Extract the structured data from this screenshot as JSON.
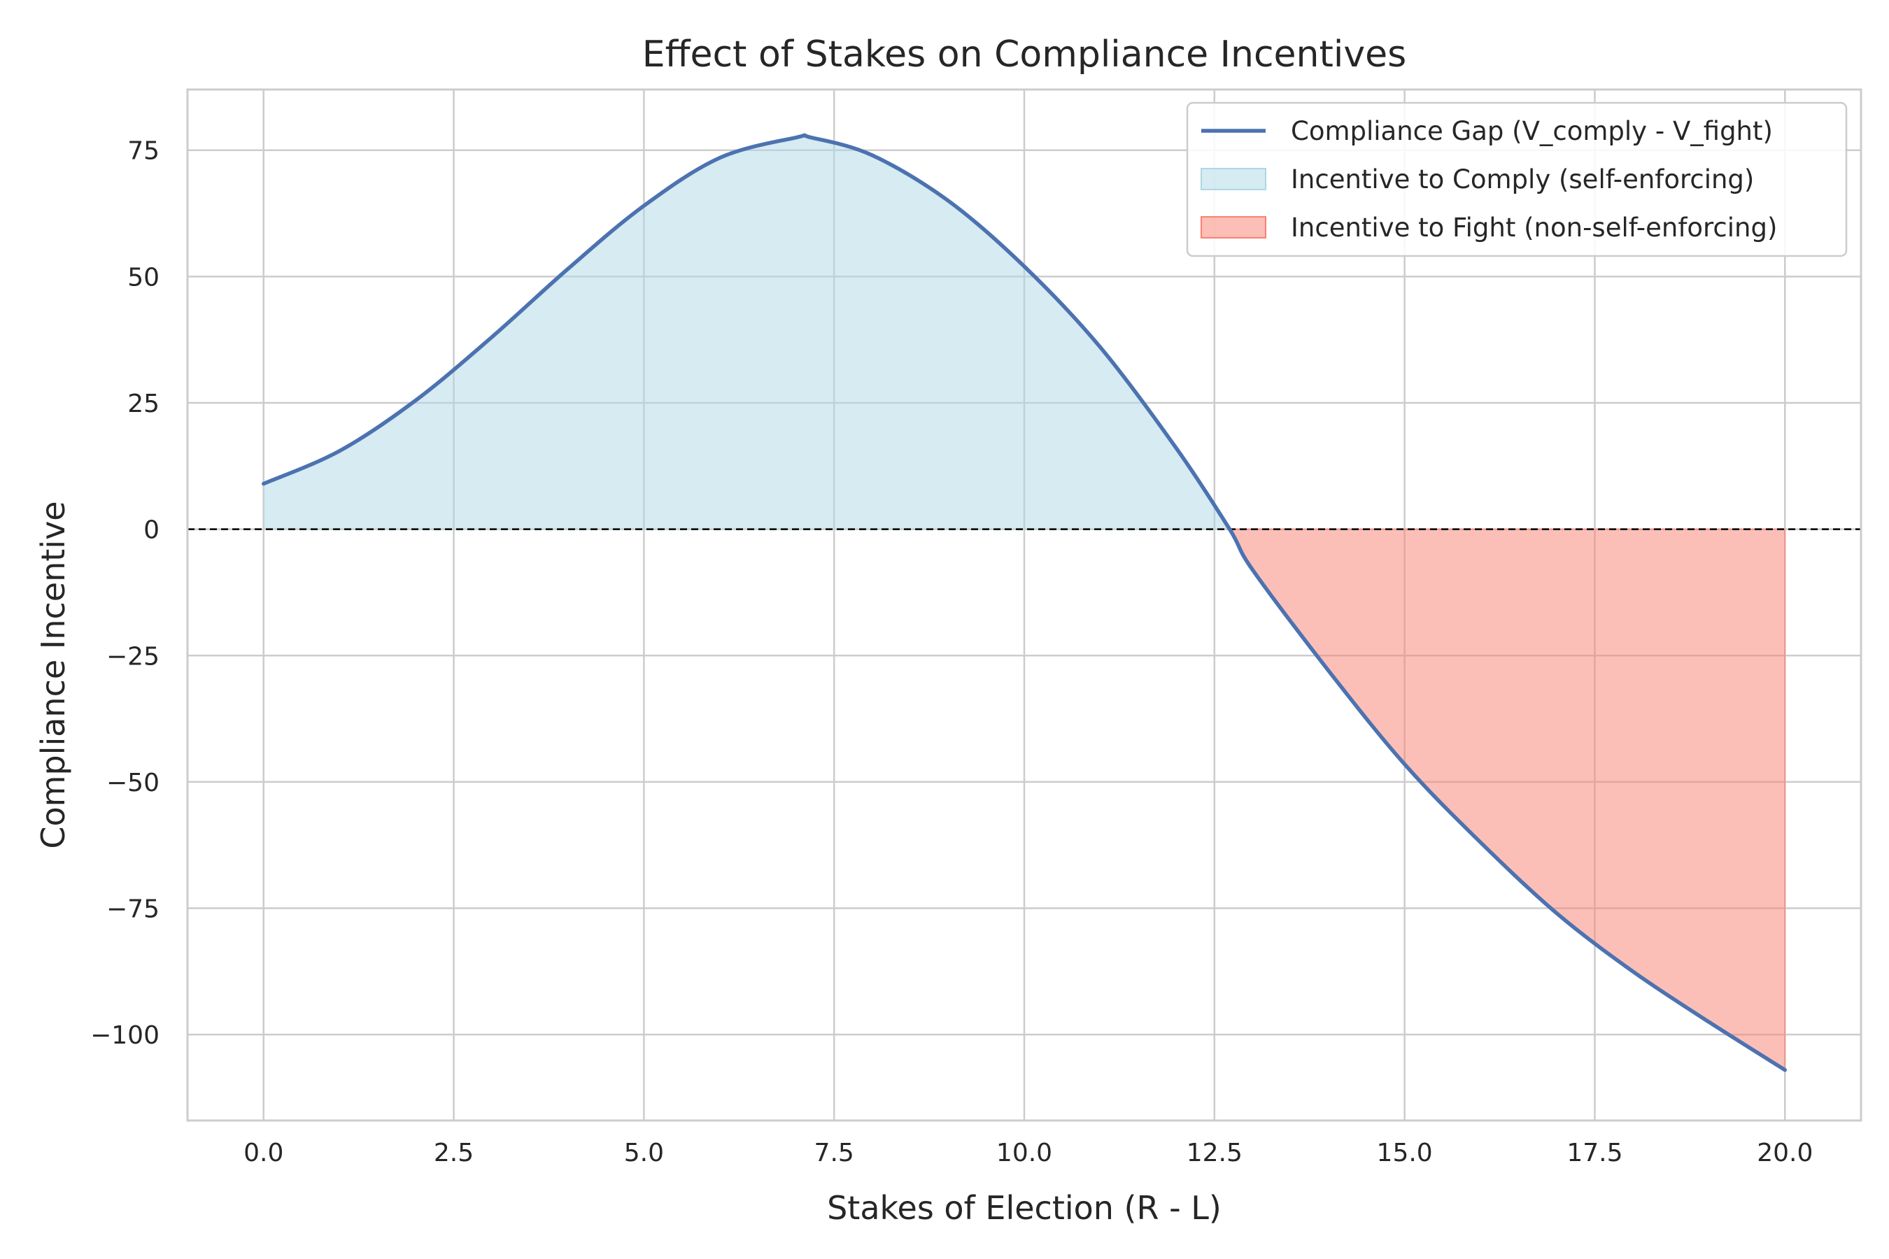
{
  "chart_data": {
    "type": "area",
    "title": "Effect of Stakes on Compliance Incentives",
    "xlabel": "Stakes of Election (R - L)",
    "ylabel": "Compliance Incentive",
    "xlim": [
      -1.0,
      21.0
    ],
    "ylim": [
      -117,
      87
    ],
    "x_ticks": [
      0,
      2.5,
      5,
      7.5,
      10,
      12.5,
      15,
      17.5,
      20
    ],
    "y_ticks": [
      -100,
      -75,
      -50,
      -25,
      0,
      25,
      50,
      75
    ],
    "x_tick_labels": [
      "0.0",
      "2.5",
      "5.0",
      "7.5",
      "10.0",
      "12.5",
      "15.0",
      "17.5",
      "20.0"
    ],
    "y_tick_labels": [
      "−100",
      "−75",
      "−50",
      "−25",
      "0",
      "25",
      "50",
      "75"
    ],
    "grid": true,
    "legend_position": "top-right",
    "reference_line": {
      "y": 0,
      "style": "dashed",
      "color": "#000000"
    },
    "series": [
      {
        "name": "Compliance Gap (V_comply - V_fight)",
        "color": "#4c72b0",
        "x": [
          0,
          1,
          2,
          3,
          4,
          5,
          6,
          7,
          7.2,
          8,
          9,
          10,
          11,
          12,
          12.7,
          13,
          14,
          15,
          16,
          17,
          18,
          19,
          20
        ],
        "y": [
          9,
          15.5,
          25.5,
          38,
          51.5,
          64,
          73.5,
          77.5,
          77.5,
          74,
          65,
          52,
          36,
          16,
          0,
          -8,
          -28,
          -46.5,
          -62,
          -76,
          -87.5,
          -97.5,
          -107
        ]
      }
    ],
    "fills": [
      {
        "name": "Incentive to Comply (self-enforcing)",
        "color": "#add8e6",
        "opacity": 0.5,
        "where": "y >= 0"
      },
      {
        "name": "Incentive to Fight (non-self-enforcing)",
        "color": "#fa8072",
        "opacity": 0.5,
        "where": "y < 0"
      }
    ]
  }
}
